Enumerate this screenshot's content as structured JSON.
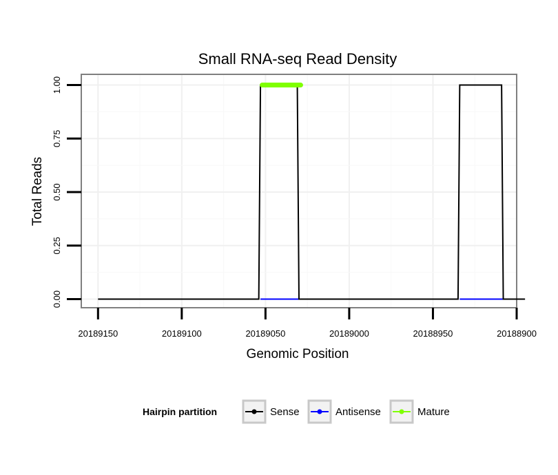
{
  "chart_data": {
    "type": "line",
    "title": "Small RNA-seq Read Density",
    "xlabel": "Genomic Position",
    "ylabel": "Total Reads",
    "xlim": [
      20189160,
      20188900
    ],
    "ylim": [
      -0.04,
      1.05
    ],
    "x_reversed": true,
    "xticks": [
      20189150,
      20189100,
      20189050,
      20189000,
      20188950,
      20188900
    ],
    "xtick_labels": [
      "20189150",
      "20189100",
      "20189050",
      "20189000",
      "20188950",
      "20188900"
    ],
    "yticks": [
      0,
      0.25,
      0.5,
      0.75,
      1.0
    ],
    "ytick_labels": [
      "0.00",
      "0.25",
      "0.50",
      "0.75",
      "1.00"
    ],
    "grid": true,
    "legend": {
      "title": "Hairpin partition",
      "position": "bottom",
      "entries": [
        "Sense",
        "Antisense",
        "Mature"
      ]
    },
    "series": [
      {
        "name": "Sense",
        "color": "#000000",
        "x": [
          20189150,
          20189054,
          20189053,
          20189031,
          20189030,
          20188935,
          20188934,
          20188909,
          20188908,
          20188895
        ],
        "y": [
          0,
          0,
          1,
          1,
          0,
          0,
          1,
          1,
          0,
          0
        ]
      },
      {
        "name": "Antisense",
        "color": "#0000ff",
        "x": [
          20189053,
          20189030,
          20188934,
          20188908
        ],
        "y": [
          0,
          0,
          0,
          0
        ],
        "segments": [
          [
            0,
            1
          ],
          [
            2,
            3
          ]
        ]
      },
      {
        "name": "Mature",
        "color": "#7fff00",
        "x": [
          20189052,
          20189029
        ],
        "y": [
          1,
          1
        ]
      }
    ]
  }
}
